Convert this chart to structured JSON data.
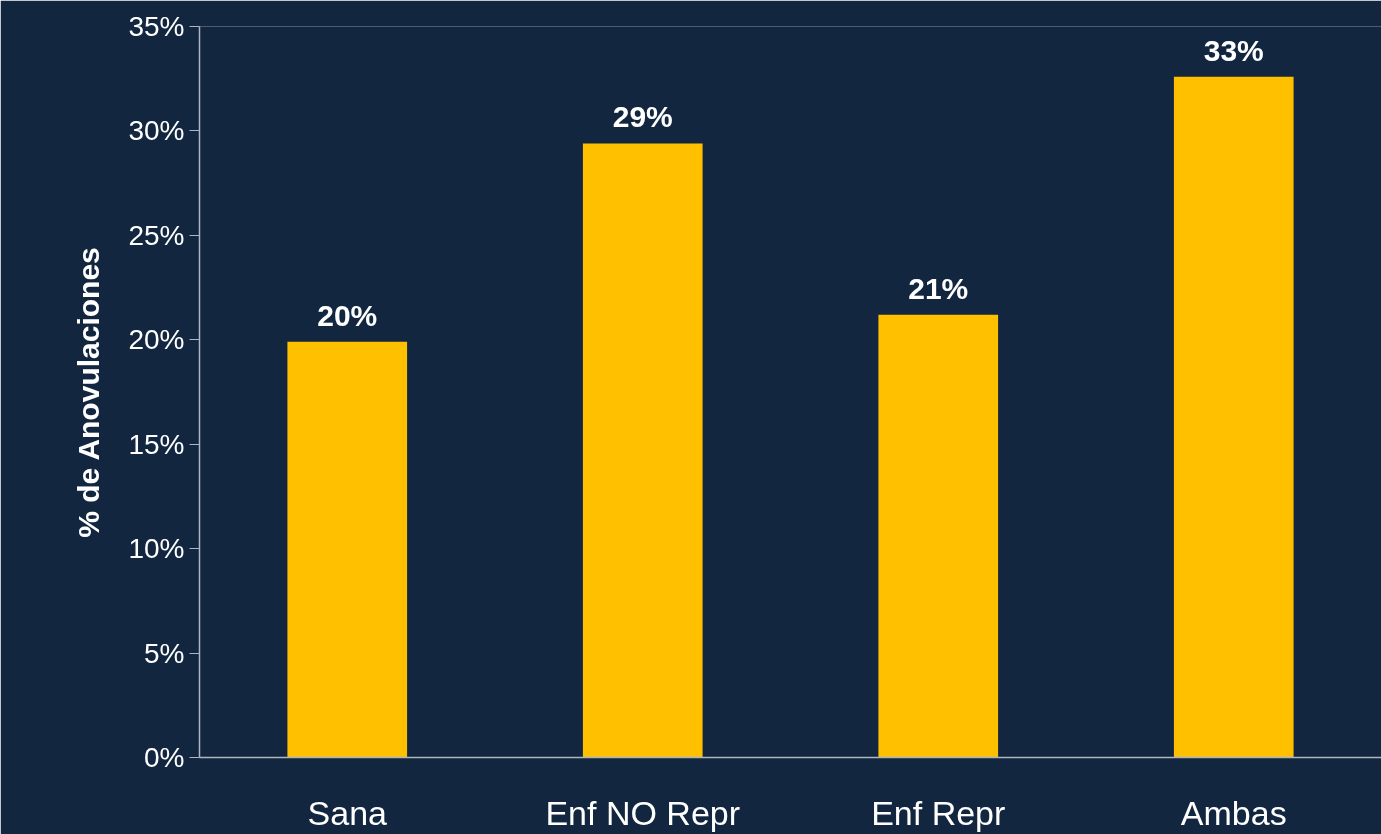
{
  "chart_data": {
    "type": "bar",
    "ylabel": "% de Anovulaciones",
    "categories": [
      "Sana",
      "Enf NO Repr",
      "Enf Repr",
      "Ambas"
    ],
    "values": [
      19.9,
      29.4,
      21.2,
      32.6
    ],
    "value_labels": [
      "20%",
      "29%",
      "21%",
      "33%"
    ],
    "color": "#ffc000",
    "ylim": [
      0,
      35
    ],
    "yticks": [
      {
        "value": 0,
        "label": "0%"
      },
      {
        "value": 5,
        "label": "5%"
      },
      {
        "value": 10,
        "label": "10%"
      },
      {
        "value": 15,
        "label": "15%"
      },
      {
        "value": 20,
        "label": "20%"
      },
      {
        "value": 25,
        "label": "25%"
      },
      {
        "value": 30,
        "label": "30%"
      },
      {
        "value": 35,
        "label": "35%"
      }
    ],
    "grid": false
  }
}
